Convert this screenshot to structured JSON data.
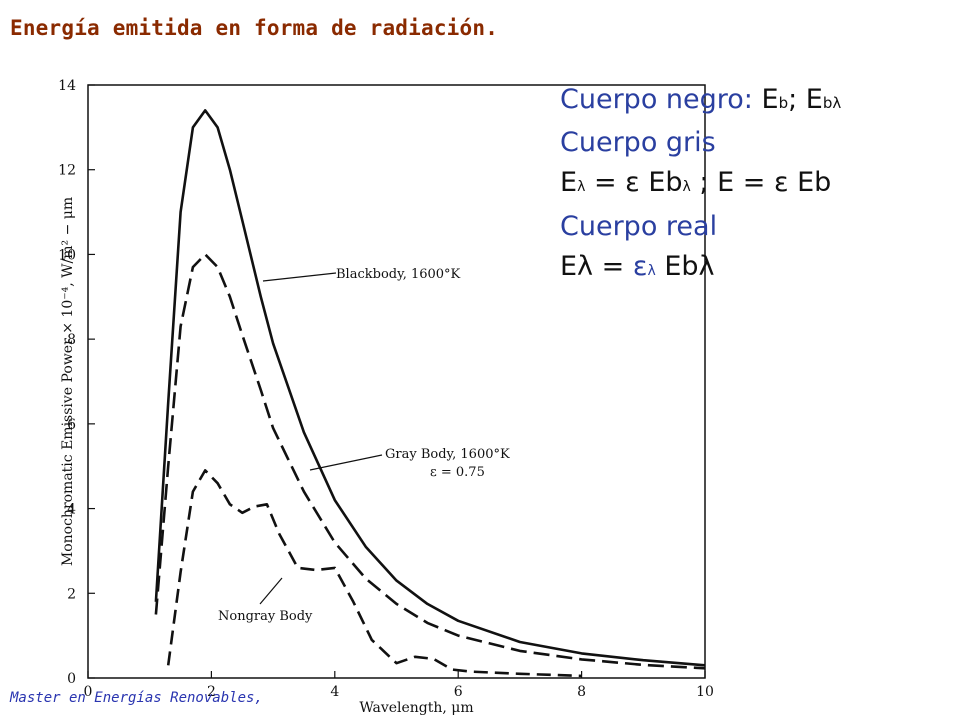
{
  "slide": {
    "title": "Energía emitida en forma de radiación.",
    "footer": "Master en Energías Renovables,"
  },
  "legend_box": {
    "line1_prefix": "Cuerpo negro: ",
    "line1_e": "E",
    "line1_sub_b": "b",
    "line1_sep": "; E",
    "line1_sub_bl": "bλ",
    "line2": "Cuerpo gris",
    "line3_part1": "E",
    "line3_sub1": "λ",
    "line3_part2": " = ε Eb",
    "line3_sub2": "λ",
    "line3_part3": " ; E = ε Eb",
    "line4": "Cuerpo real",
    "line5_part1": "Eλ = ",
    "line5_eps": "ε",
    "line5_sub": "λ",
    "line5_part2": " Ebλ"
  },
  "colors": {
    "title": "#8a2a00",
    "blue_text": "#2a3fa0",
    "footer": "#2a35b0",
    "ink": "#111111"
  },
  "chart_data": {
    "type": "line",
    "title": "",
    "xlabel": "Wavelength, μm",
    "ylabel": "Monochromatic Emissive Power × 10⁻⁴, W/m² − μm",
    "xlim": [
      0,
      10
    ],
    "ylim": [
      0,
      14
    ],
    "xticks": [
      "0",
      "2",
      "4",
      "6",
      "8",
      "10"
    ],
    "yticks": [
      "0",
      "2",
      "4",
      "6",
      "8",
      "10",
      "12",
      "14"
    ],
    "grid": false,
    "series": [
      {
        "name": "Blackbody, 1600°K",
        "style": "solid",
        "x": [
          1.1,
          1.3,
          1.5,
          1.7,
          1.9,
          2.1,
          2.3,
          2.5,
          2.8,
          3.0,
          3.5,
          4.0,
          4.5,
          5.0,
          5.5,
          6.0,
          7.0,
          8.0,
          9.0,
          10.0
        ],
        "y": [
          1.8,
          6.5,
          11.0,
          13.0,
          13.4,
          13.0,
          12.0,
          10.8,
          9.0,
          7.9,
          5.8,
          4.2,
          3.1,
          2.3,
          1.75,
          1.35,
          0.85,
          0.58,
          0.42,
          0.3
        ]
      },
      {
        "name": "Gray Body, 1600°K",
        "note": "ε = 0.75",
        "style": "dashed",
        "x": [
          1.1,
          1.3,
          1.5,
          1.7,
          1.9,
          2.1,
          2.3,
          2.5,
          2.8,
          3.0,
          3.5,
          4.0,
          4.5,
          5.0,
          5.5,
          6.0,
          7.0,
          8.0,
          9.0,
          10.0
        ],
        "y": [
          1.5,
          5.0,
          8.3,
          9.7,
          10.0,
          9.7,
          9.0,
          8.1,
          6.8,
          5.9,
          4.4,
          3.2,
          2.35,
          1.75,
          1.3,
          1.0,
          0.64,
          0.44,
          0.31,
          0.23
        ]
      },
      {
        "name": "Nongray Body",
        "style": "dashed",
        "x": [
          1.3,
          1.5,
          1.7,
          1.9,
          2.1,
          2.3,
          2.5,
          2.7,
          2.9,
          3.1,
          3.4,
          3.7,
          4.0,
          4.3,
          4.6,
          5.0,
          5.3,
          5.6,
          5.9,
          6.2,
          7.0,
          8.0
        ],
        "y": [
          0.3,
          2.5,
          4.4,
          4.9,
          4.6,
          4.1,
          3.9,
          4.05,
          4.1,
          3.4,
          2.6,
          2.55,
          2.6,
          1.8,
          0.9,
          0.35,
          0.5,
          0.45,
          0.2,
          0.15,
          0.1,
          0.05
        ]
      }
    ],
    "annotations": [
      {
        "text": "Blackbody, 1600°K"
      },
      {
        "text": "Gray Body, 1600°K"
      },
      {
        "text": "ε = 0.75"
      },
      {
        "text": "Nongray Body"
      }
    ]
  }
}
